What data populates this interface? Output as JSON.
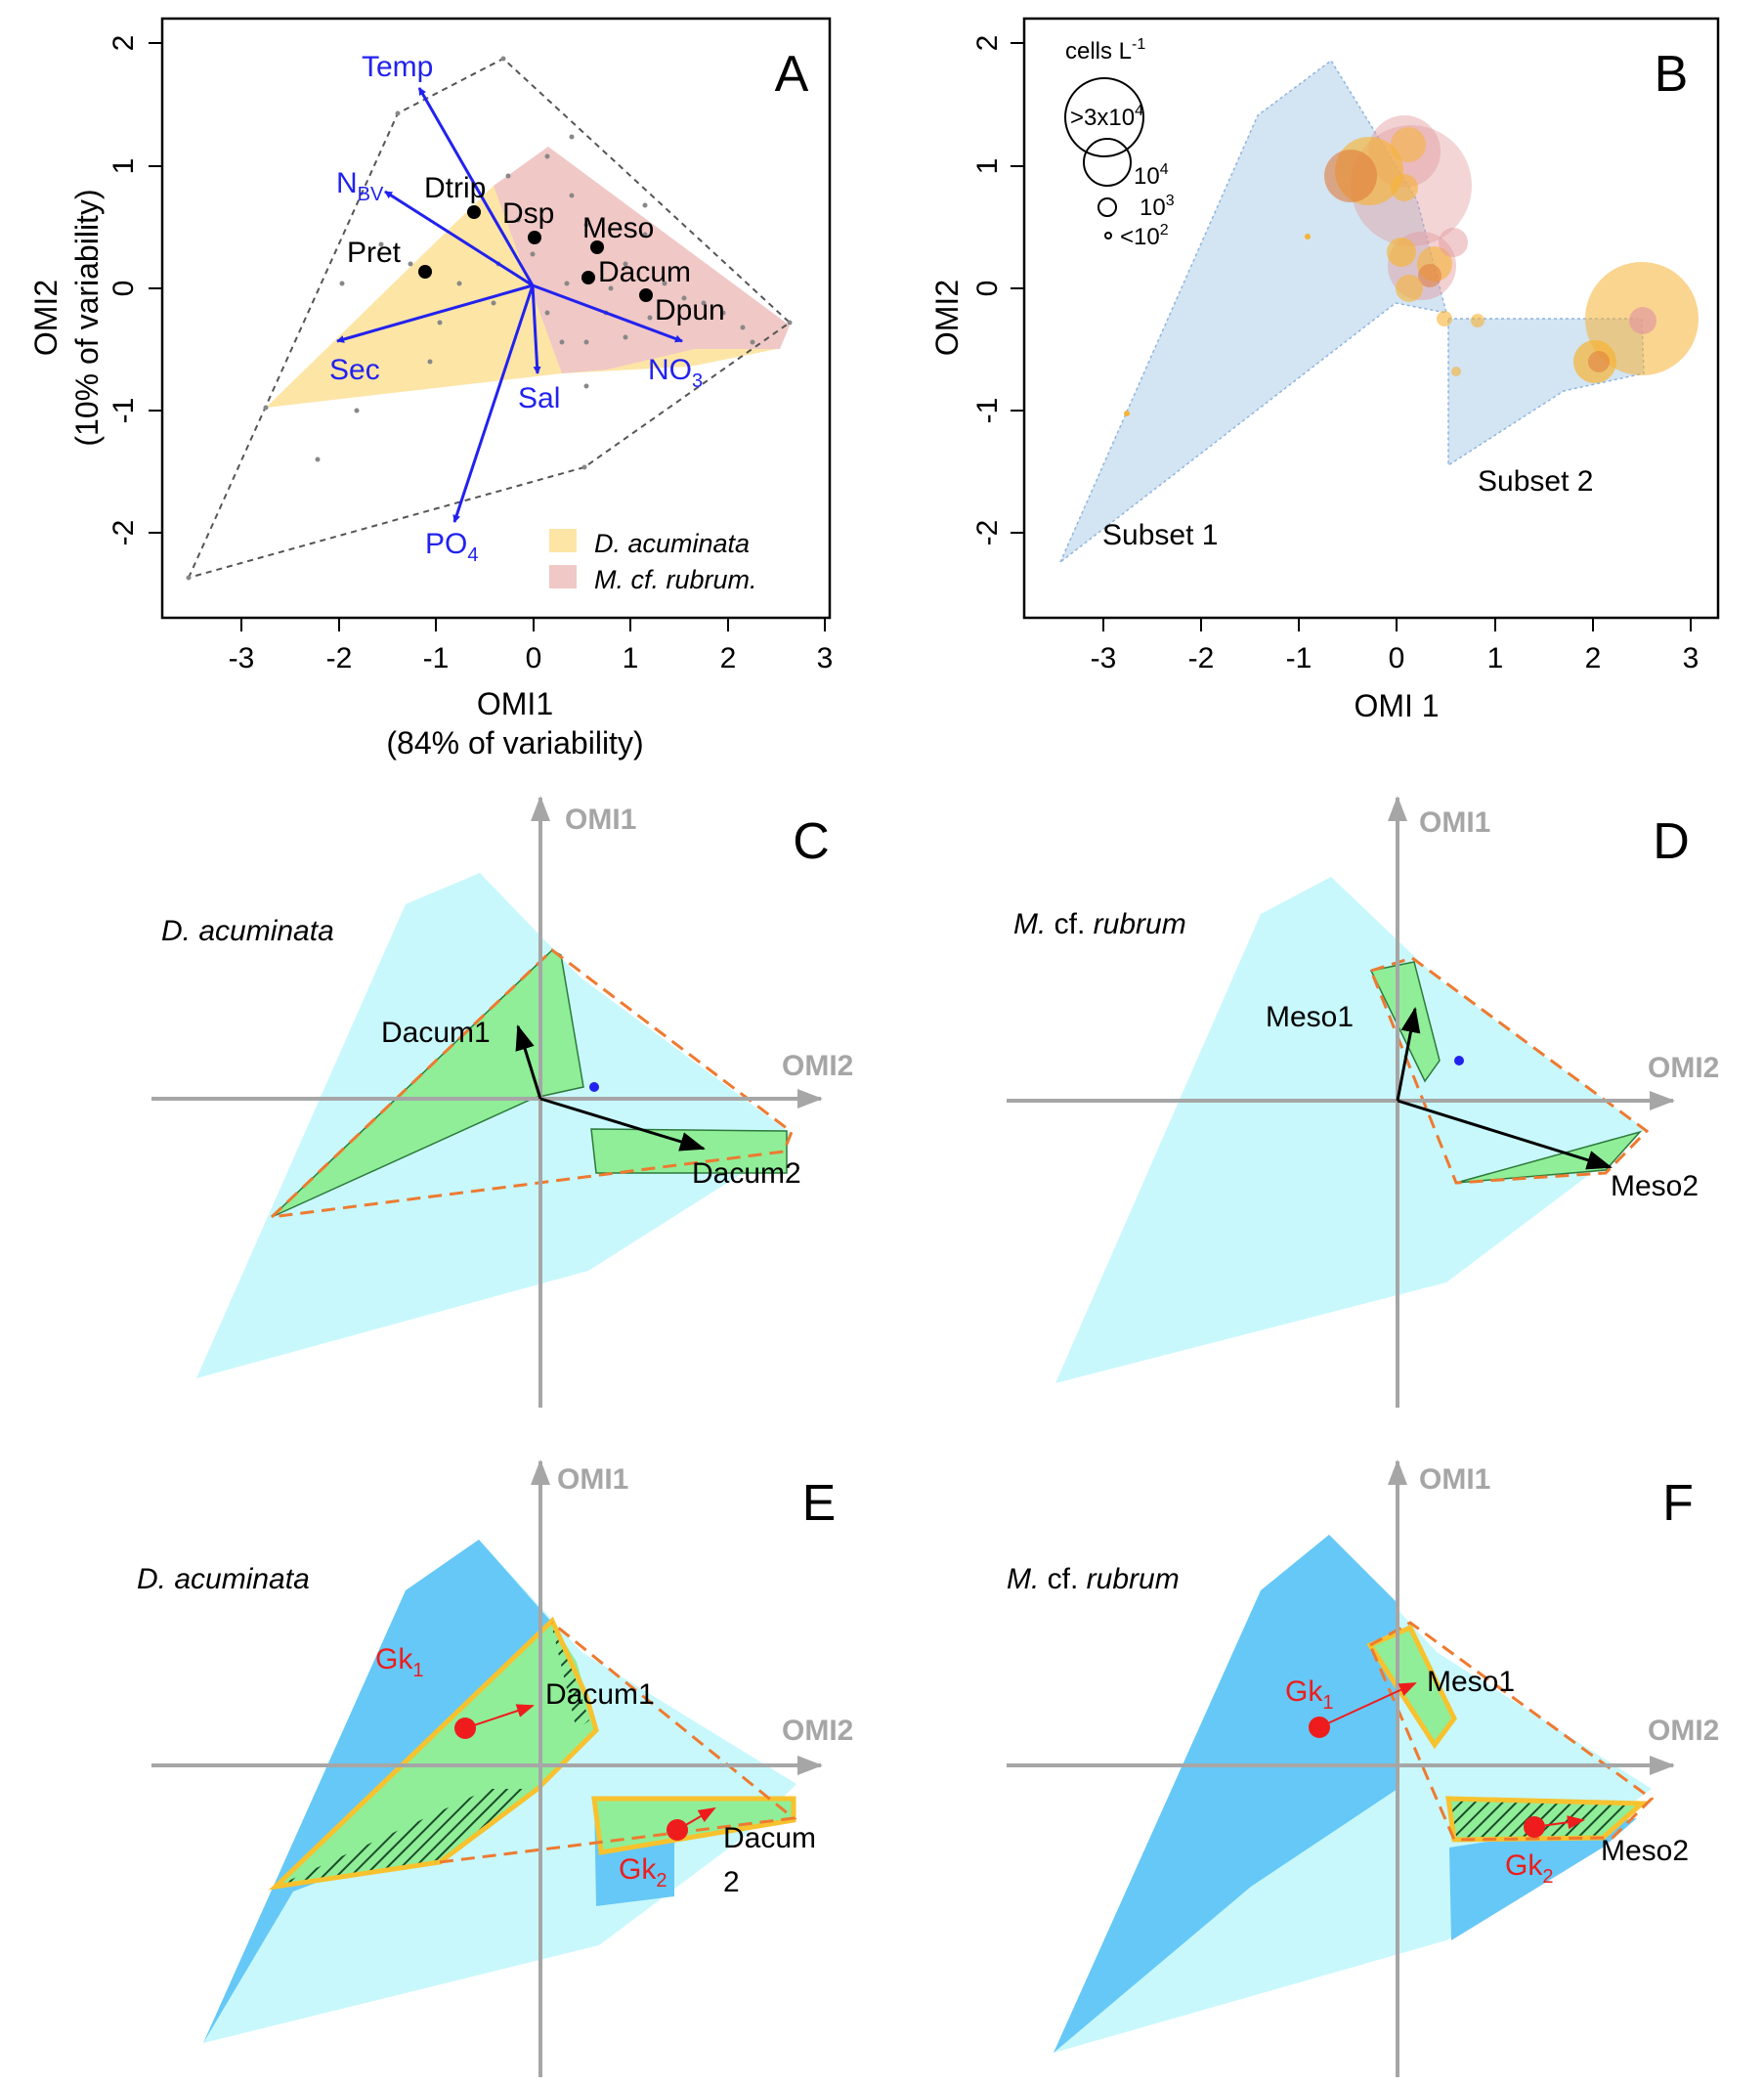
{
  "colors": {
    "dacum_fill": "#fde5a6",
    "meso_fill": "#f0c8c6",
    "env_arrow": "#2222ee",
    "gray_axis": "#a6a6a6",
    "subset_fill": "#d3e4f2",
    "niche_light": "#c8f8fc",
    "niche_dark": "#66c8f6",
    "subniche_green": "#90ee98",
    "dash_orange": "#ee7a30",
    "border_yellow": "#f7c22e",
    "gk_red": "#ee1c1c",
    "bubble_orange": "#f6b334",
    "bubble_pink": "#e39a9e"
  },
  "panelA": {
    "letter": "A",
    "x_axis_label_line1": "OMI1",
    "x_axis_label_line2": "(84% of variability)",
    "y_axis_label_line1": "OMI2",
    "y_axis_label_line2": "(10% of variability)",
    "env_labels": {
      "temp": "Temp",
      "nbv_main": "N",
      "nbv_sub": "BV",
      "sec": "Sec",
      "sal": "Sal",
      "no3_main": "NO",
      "no3_sub": "3",
      "po4_main": "PO",
      "po4_sub": "4"
    },
    "legend": {
      "dacum": "D. acuminata",
      "meso": "M. cf. rubrum."
    }
  },
  "panelB": {
    "letter": "B",
    "x_axis_label": "OMI 1",
    "y_axis_label": "OMI2",
    "size_legend": {
      "title_main": "cells L",
      "title_sup": "-1",
      "entry1_main": ">3x10",
      "entry1_sup": "4",
      "entry2_main": "10",
      "entry2_sup": "4",
      "entry3_main": "10",
      "entry3_sup": "3",
      "entry4_main": "<10",
      "entry4_sup": "2"
    },
    "subset1": "Subset 1",
    "subset2": "Subset 2"
  },
  "panelC": {
    "letter": "C",
    "species": "D. acuminata",
    "axis1": "OMI1",
    "axis2": "OMI2",
    "sub1": "Dacum1",
    "sub2": "Dacum2"
  },
  "panelD": {
    "letter": "D",
    "species_main": "M.",
    "species_mid": " cf. ",
    "species_end": "rubrum",
    "axis1": "OMI1",
    "axis2": "OMI2",
    "sub1": "Meso1",
    "sub2": "Meso2"
  },
  "panelE": {
    "letter": "E",
    "species": "D. acuminata",
    "axis1": "OMI1",
    "axis2": "OMI2",
    "sub1": "Dacum1",
    "sub2_line1": "Dacum",
    "sub2_line2": "2",
    "gk": "Gk",
    "gk1_sub": "1",
    "gk2_sub": "2"
  },
  "panelF": {
    "letter": "F",
    "species_main": "M.",
    "species_mid": " cf. ",
    "species_end": "rubrum",
    "axis1": "OMI1",
    "axis2": "OMI2",
    "sub1": "Meso1",
    "sub2": "Meso2",
    "gk": "Gk",
    "gk1_sub": "1",
    "gk2_sub": "2"
  },
  "chart_data": [
    {
      "panel": "A",
      "type": "scatter",
      "xlabel": "OMI1 (84% of variability)",
      "ylabel": "OMI2 (10% of variability)",
      "xlim": [
        -3.8,
        3.0
      ],
      "ylim": [
        -2.65,
        2.1
      ],
      "xticks": [
        -3,
        -2,
        -1,
        0,
        1,
        2,
        3
      ],
      "yticks": [
        -2,
        -1,
        0,
        1,
        2
      ],
      "species_points": [
        {
          "name": "Pret",
          "x": -1.1,
          "y": 0.12
        },
        {
          "name": "Dtrip",
          "x": -0.6,
          "y": 0.6
        },
        {
          "name": "Dsp",
          "x": 0.02,
          "y": 0.4
        },
        {
          "name": "Meso",
          "x": 0.65,
          "y": 0.32
        },
        {
          "name": "Dacum",
          "x": 0.57,
          "y": 0.08
        },
        {
          "name": "Dpun",
          "x": 1.15,
          "y": -0.07
        }
      ],
      "environmental_vectors": [
        {
          "name": "Temp",
          "x": -1.15,
          "y": 1.62
        },
        {
          "name": "NBV",
          "x": -1.45,
          "y": 0.72
        },
        {
          "name": "Sec",
          "x": -2.0,
          "y": -0.45
        },
        {
          "name": "Sal",
          "x": 0.05,
          "y": -0.72
        },
        {
          "name": "NO3",
          "x": 1.55,
          "y": -0.45
        },
        {
          "name": "PO4",
          "x": -0.8,
          "y": -1.88
        }
      ]
    },
    {
      "panel": "B",
      "type": "scatter",
      "xlabel": "OMI 1",
      "ylabel": "OMI2",
      "xlim": [
        -3.8,
        3.25
      ],
      "ylim": [
        -2.65,
        2.2
      ],
      "xticks": [
        -3,
        -2,
        -1,
        0,
        1,
        2,
        3
      ],
      "yticks": [
        -2,
        -1,
        0,
        1,
        2
      ],
      "bubble_legend": [
        ">3x10^4",
        "10^4",
        "10^3",
        "<10^2"
      ]
    }
  ]
}
